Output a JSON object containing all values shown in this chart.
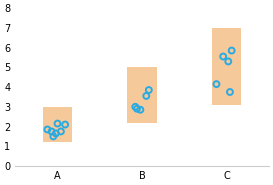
{
  "categories": [
    "A",
    "B",
    "C"
  ],
  "bar_bottoms": [
    1.2,
    2.2,
    3.1
  ],
  "bar_tops": [
    3.0,
    5.0,
    7.0
  ],
  "scatter_x": {
    "A": [
      -0.12,
      -0.07,
      -0.02,
      0.04,
      0.09,
      0.0,
      -0.05
    ],
    "B": [
      -0.08,
      -0.02,
      0.05,
      0.08,
      -0.06
    ],
    "C": [
      -0.12,
      0.04,
      -0.04,
      0.06,
      0.02
    ]
  },
  "scatter_y": {
    "A": [
      1.85,
      1.75,
      1.65,
      1.75,
      2.1,
      2.15,
      1.5
    ],
    "B": [
      3.0,
      2.85,
      3.55,
      3.85,
      2.9
    ],
    "C": [
      4.15,
      3.75,
      5.55,
      5.85,
      5.3
    ]
  },
  "bar_color": "#f5c08a",
  "bar_alpha": 0.85,
  "scatter_color": "#29abe2",
  "scatter_size": 18,
  "scatter_linewidth": 1.4,
  "ylim": [
    0,
    8
  ],
  "yticks": [
    0,
    1,
    2,
    3,
    4,
    5,
    6,
    7,
    8
  ],
  "xtick_positions": [
    1,
    2,
    3
  ],
  "xlabel_labels": [
    "A",
    "B",
    "C"
  ],
  "bar_width": 0.35,
  "bar_centers": [
    1,
    2,
    3
  ],
  "background_color": "#ffffff",
  "tick_fontsize": 7,
  "spine_color": "#cccccc"
}
